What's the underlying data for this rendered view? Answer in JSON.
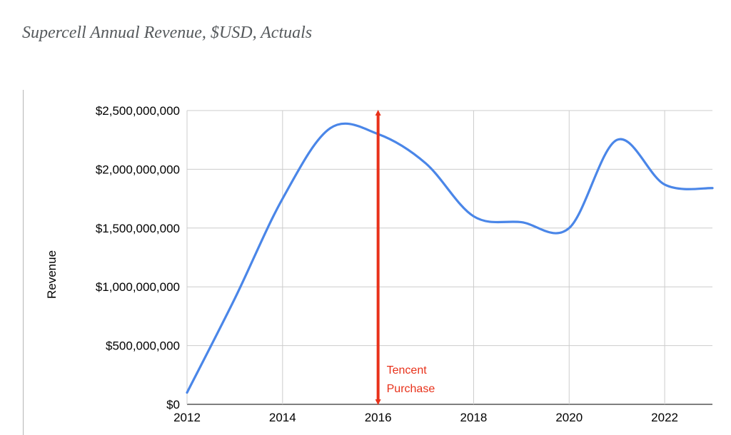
{
  "page_title": "Supercell Annual Revenue, $USD, Actuals",
  "chart_data": {
    "type": "line",
    "title": "",
    "xlabel": "",
    "ylabel": "Revenue",
    "x": [
      2012,
      2013,
      2014,
      2015,
      2016,
      2017,
      2018,
      2019,
      2020,
      2021,
      2022,
      2023
    ],
    "xlim": [
      2012,
      2023
    ],
    "ylim": [
      0,
      2500000000
    ],
    "x_ticks": [
      "2012",
      "2014",
      "2016",
      "2018",
      "2020",
      "2022"
    ],
    "x_tick_values": [
      2012,
      2014,
      2016,
      2018,
      2020,
      2022
    ],
    "y_ticks": [
      "$0",
      "$500,000,000",
      "$1,000,000,000",
      "$1,500,000,000",
      "$2,000,000,000",
      "$2,500,000,000"
    ],
    "y_tick_values": [
      0,
      500000000,
      1000000000,
      1500000000,
      2000000000,
      2500000000
    ],
    "grid": true,
    "series": [
      {
        "name": "",
        "color": "#4a86e8",
        "values": [
          100000000,
          900000000,
          1750000000,
          2350000000,
          2300000000,
          2050000000,
          1600000000,
          1550000000,
          1500000000,
          2250000000,
          1870000000,
          1840000000
        ]
      }
    ],
    "annotations": [
      {
        "x": 2016,
        "color": "#e8311a",
        "text": [
          "Tencent",
          "Purchase"
        ]
      }
    ]
  }
}
